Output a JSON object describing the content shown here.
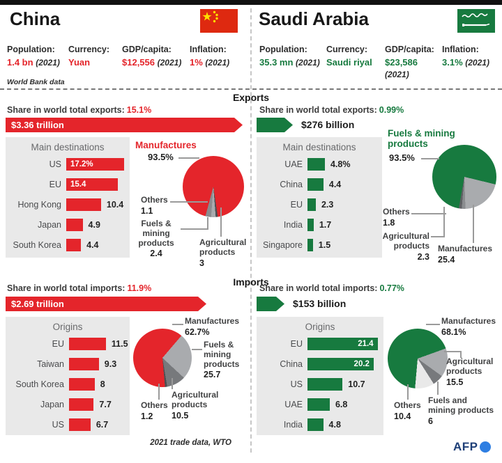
{
  "colors": {
    "china_accent": "#e4252b",
    "saudi_accent": "#177a3f",
    "afp_blue": "#2e7ee2",
    "afp_navy": "#1d3e77"
  },
  "sections": {
    "exports": "Exports",
    "imports": "Imports"
  },
  "countries": [
    {
      "name": "China",
      "accent": "#e4252b",
      "stats": [
        {
          "label": "Population:",
          "value": "1.4 bn",
          "year": "(2021)"
        },
        {
          "label": "Currency:",
          "value": "Yuan",
          "year": ""
        },
        {
          "label": "GDP/capita:",
          "value": "$12,556",
          "year": "(2021)"
        },
        {
          "label": "Inflation:",
          "value": "1%",
          "year": "(2021)"
        }
      ],
      "note": "World Bank data",
      "exports": {
        "share_label": "Share in world total exports:",
        "share_value": "15.1%",
        "total": "$3.36 trillion"
      },
      "imports": {
        "share_label": "Share in world total imports:",
        "share_value": "11.9%",
        "total": "$2.69 trillion"
      }
    },
    {
      "name": "Saudi Arabia",
      "accent": "#177a3f",
      "stats": [
        {
          "label": "Population:",
          "value": "35.3 mn",
          "year": "(2021)"
        },
        {
          "label": "Currency:",
          "value": "Saudi riyal",
          "year": ""
        },
        {
          "label": "GDP/capita:",
          "value": "$23,586",
          "year": "(2021)"
        },
        {
          "label": "Inflation:",
          "value": "3.1%",
          "year": "(2021)"
        }
      ],
      "exports": {
        "share_label": "Share in world total exports:",
        "share_value": "0.99%",
        "total": "$276 billion"
      },
      "imports": {
        "share_label": "Share in world total imports:",
        "share_value": "0.77%",
        "total": "$153 billion"
      }
    }
  ],
  "chart_data": [
    {
      "id": "china-export-destinations",
      "type": "bar",
      "title": "Main destinations",
      "color": "#e4252b",
      "categories": [
        "US",
        "EU",
        "Hong Kong",
        "Japan",
        "South Korea"
      ],
      "values": [
        17.2,
        15.4,
        10.4,
        4.9,
        4.4
      ],
      "display_values": [
        "17.2%",
        "15.4",
        "10.4",
        "4.9",
        "4.4"
      ],
      "value_inside": [
        "left",
        "left",
        null,
        null,
        null
      ]
    },
    {
      "id": "china-export-composition",
      "type": "pie",
      "slices": [
        {
          "label": "Manufactures",
          "value": 93.5,
          "display": "93.5%",
          "color": "#e4252b"
        },
        {
          "label": "Others",
          "value": 1.1,
          "display": "1.1",
          "color": "#4d4f52"
        },
        {
          "label": "Fuels & mining products",
          "value": 2.4,
          "display": "2.4",
          "color": "#a9abae"
        },
        {
          "label": "Agricultural products",
          "value": 3,
          "display": "3",
          "color": "#8a8c8f"
        }
      ]
    },
    {
      "id": "saudi-export-destinations",
      "type": "bar",
      "title": "Main destinations",
      "color": "#177a3f",
      "categories": [
        "UAE",
        "China",
        "EU",
        "India",
        "Singapore"
      ],
      "values": [
        4.8,
        4.4,
        2.3,
        1.7,
        1.5
      ],
      "display_values": [
        "4.8%",
        "4.4",
        "2.3",
        "1.7",
        "1.5"
      ],
      "value_inside": [
        null,
        null,
        null,
        null,
        null
      ]
    },
    {
      "id": "saudi-export-composition",
      "type": "pie",
      "slices": [
        {
          "label": "Fuels & mining products",
          "value": 93.5,
          "display": "93.5%",
          "color": "#177a3f"
        },
        {
          "label": "Manufactures",
          "value": 25.4,
          "display": "25.4",
          "color": "#a9abae"
        },
        {
          "label": "Agricultural products",
          "value": 2.3,
          "display": "2.3",
          "color": "#8a8c8f"
        },
        {
          "label": "Others",
          "value": 1.8,
          "display": "1.8",
          "color": "#5f6164"
        }
      ]
    },
    {
      "id": "china-import-origins",
      "type": "bar",
      "title": "Origins",
      "color": "#e4252b",
      "categories": [
        "EU",
        "Taiwan",
        "South Korea",
        "Japan",
        "US"
      ],
      "values": [
        11.5,
        9.3,
        8,
        7.7,
        6.7
      ],
      "display_values": [
        "11.5",
        "9.3",
        "8",
        "7.7",
        "6.7"
      ],
      "value_inside": [
        null,
        null,
        null,
        null,
        null
      ]
    },
    {
      "id": "china-import-composition",
      "type": "pie",
      "slices": [
        {
          "label": "Manufactures",
          "value": 62.7,
          "display": "62.7%",
          "color": "#e4252b"
        },
        {
          "label": "Fuels & mining products",
          "value": 25.7,
          "display": "25.7",
          "color": "#a9abae"
        },
        {
          "label": "Agricultural products",
          "value": 10.5,
          "display": "10.5",
          "color": "#77797c"
        },
        {
          "label": "Others",
          "value": 1.2,
          "display": "1.2",
          "color": "#4d4f52"
        }
      ]
    },
    {
      "id": "saudi-import-origins",
      "type": "bar",
      "title": "Origins",
      "color": "#177a3f",
      "categories": [
        "EU",
        "China",
        "US",
        "UAE",
        "India"
      ],
      "values": [
        21.4,
        20.2,
        10.7,
        6.8,
        4.8
      ],
      "display_values": [
        "21.4",
        "20.2",
        "10.7",
        "6.8",
        "4.8"
      ],
      "value_inside": [
        "right",
        "right",
        null,
        null,
        null
      ]
    },
    {
      "id": "saudi-import-composition",
      "type": "pie",
      "slices": [
        {
          "label": "Manufactures",
          "value": 68.1,
          "display": "68.1%",
          "color": "#177a3f"
        },
        {
          "label": "Agricultural products",
          "value": 15.5,
          "display": "15.5",
          "color": "#a9abae"
        },
        {
          "label": "Fuels and mining products",
          "value": 6,
          "display": "6",
          "color": "#77797c"
        },
        {
          "label": "Others",
          "value": 10.4,
          "display": "10.4",
          "color": "#e9e9e9"
        }
      ]
    }
  ],
  "footer": {
    "source": "2021 trade data, WTO",
    "brand": "AFP"
  }
}
